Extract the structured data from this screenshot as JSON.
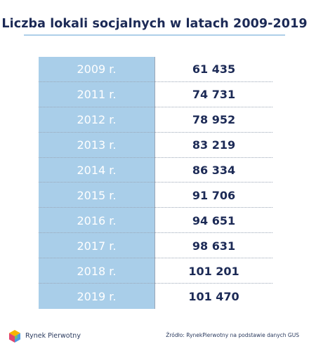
{
  "chart_data": {
    "type": "table",
    "title": "Liczba lokali socjalnych w latach 2009-2019",
    "rows": [
      {
        "year": "2009 r.",
        "value": "61 435"
      },
      {
        "year": "2011 r.",
        "value": "74 731"
      },
      {
        "year": "2012 r.",
        "value": "78 952"
      },
      {
        "year": "2013 r.",
        "value": "83 219"
      },
      {
        "year": "2014 r.",
        "value": "86 334"
      },
      {
        "year": "2015 r.",
        "value": "91 706"
      },
      {
        "year": "2016 r.",
        "value": "94 651"
      },
      {
        "year": "2017 r.",
        "value": "98 631"
      },
      {
        "year": "2018 r.",
        "value": "101 201"
      },
      {
        "year": "2019 r.",
        "value": "101 470"
      }
    ]
  },
  "footer": {
    "brand": "Rynek Pierwotny",
    "source": "Źródło: RynekPierwotny na podstawie danych GUS"
  },
  "colors": {
    "title": "#1c2a56",
    "year_column": "#a9cee9",
    "accent_underline": "#aecfe9"
  },
  "icons": {
    "logo": "cube-logo-icon"
  }
}
